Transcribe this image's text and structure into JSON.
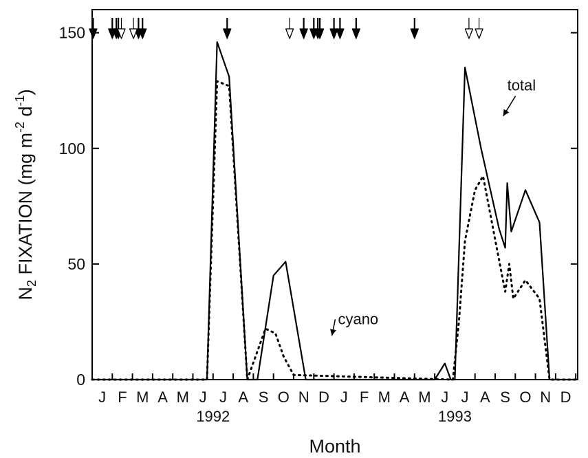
{
  "chart_data": {
    "type": "line",
    "xlabel": "Month",
    "ylabel_main": "N",
    "ylabel_sub": "2",
    "ylabel_mid": " FIXATION (mg m",
    "ylabel_exp1": "-2",
    "ylabel_d": " d",
    "ylabel_exp2": "-1",
    "ylabel_end": ")",
    "ylim": [
      0,
      160
    ],
    "yticks": [
      0,
      50,
      100,
      150
    ],
    "xlim": [
      0,
      24
    ],
    "x_unit": "months since Jan 1992 (0 = start of January 1992)",
    "month_labels": [
      "J",
      "F",
      "M",
      "A",
      "M",
      "J",
      "J",
      "A",
      "S",
      "O",
      "N",
      "D",
      "J",
      "F",
      "M",
      "A",
      "M",
      "J",
      "J",
      "A",
      "S",
      "O",
      "N",
      "D"
    ],
    "year_labels": [
      {
        "text": "1992",
        "at": 6.0
      },
      {
        "text": "1993",
        "at": 18.0
      }
    ],
    "grid": false,
    "legend": "none",
    "series": [
      {
        "name": "total",
        "style": "solid",
        "points": [
          [
            0,
            0
          ],
          [
            5.7,
            0
          ],
          [
            6.2,
            146
          ],
          [
            6.8,
            131
          ],
          [
            7.7,
            0
          ],
          [
            8.2,
            0
          ],
          [
            9.0,
            45
          ],
          [
            9.6,
            51
          ],
          [
            10.6,
            0
          ],
          [
            17.0,
            0
          ],
          [
            17.5,
            7
          ],
          [
            17.8,
            0
          ],
          [
            18.0,
            0
          ],
          [
            18.5,
            135
          ],
          [
            19.3,
            100
          ],
          [
            20.2,
            65
          ],
          [
            20.5,
            57
          ],
          [
            20.6,
            85
          ],
          [
            20.8,
            64
          ],
          [
            21.5,
            82
          ],
          [
            22.2,
            68
          ],
          [
            22.7,
            0
          ],
          [
            24,
            0
          ]
        ]
      },
      {
        "name": "cyano",
        "style": "dotted",
        "points": [
          [
            0,
            0
          ],
          [
            5.7,
            0
          ],
          [
            6.2,
            129
          ],
          [
            6.8,
            127
          ],
          [
            7.7,
            0
          ],
          [
            8.6,
            22
          ],
          [
            9.1,
            20
          ],
          [
            9.5,
            10
          ],
          [
            10.0,
            2
          ],
          [
            17.9,
            0
          ],
          [
            18.2,
            25
          ],
          [
            18.5,
            60
          ],
          [
            19.0,
            82
          ],
          [
            19.4,
            88
          ],
          [
            20.1,
            56
          ],
          [
            20.5,
            38
          ],
          [
            20.7,
            50
          ],
          [
            20.9,
            35
          ],
          [
            21.5,
            43
          ],
          [
            22.2,
            35
          ],
          [
            22.7,
            0
          ],
          [
            24,
            0
          ]
        ]
      }
    ],
    "annotations": [
      {
        "text": "total",
        "text_at": [
          20.6,
          125
        ],
        "arrow_to": [
          20.4,
          114
        ]
      },
      {
        "text": "cyano",
        "text_at": [
          12.2,
          24
        ],
        "arrow_to": [
          11.9,
          19
        ]
      }
    ],
    "top_markers": {
      "filled_x": [
        0.05,
        1.0,
        1.2,
        1.3,
        2.3,
        2.5,
        6.7,
        10.5,
        11.0,
        11.2,
        11.3,
        12.0,
        12.3,
        13.1,
        16.0
      ],
      "open_x": [
        1.45,
        2.05,
        9.8,
        18.7,
        19.2
      ]
    }
  }
}
